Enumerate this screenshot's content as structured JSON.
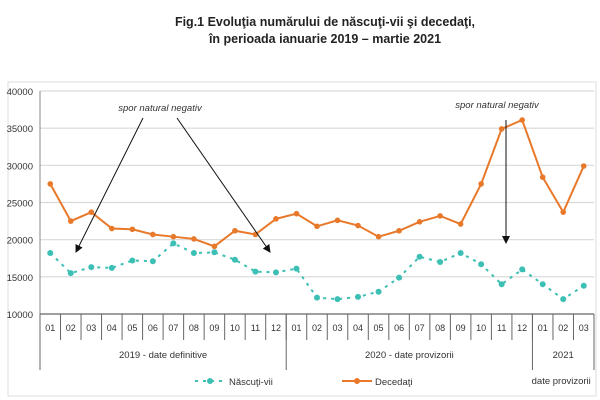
{
  "chart_data": {
    "type": "line",
    "title": "Fig.1 Evoluţia numărului de născuţi-vii şi decedaţi,",
    "subtitle": "în perioada ianuarie 2019 –  martie 2021",
    "categories": [
      "01",
      "02",
      "03",
      "04",
      "05",
      "06",
      "07",
      "08",
      "09",
      "10",
      "11",
      "12",
      "01",
      "02",
      "03",
      "04",
      "05",
      "06",
      "07",
      "08",
      "09",
      "10",
      "11",
      "12",
      "01",
      "02",
      "03"
    ],
    "groups": [
      {
        "label": "2019 - date definitive",
        "count": 12
      },
      {
        "label": "2020 - date provizorii",
        "count": 12
      },
      {
        "label": "2021",
        "sublabel": "date provizorii",
        "count": 3
      }
    ],
    "ylim": [
      10000,
      40000
    ],
    "yticks": [
      10000,
      15000,
      20000,
      25000,
      30000,
      35000,
      40000
    ],
    "grid": true,
    "legend_position": "bottom",
    "series": [
      {
        "name": "Născuţi-vii",
        "color": "#3cbfb4",
        "style": "dashed",
        "values": [
          18200,
          15500,
          16300,
          16200,
          17200,
          17100,
          19500,
          18200,
          18300,
          17300,
          15700,
          15600,
          16100,
          12200,
          12000,
          12300,
          13000,
          14900,
          17700,
          17000,
          18200,
          16700,
          14000,
          16000,
          14000,
          12000,
          13800
        ]
      },
      {
        "name": "Decedaţi",
        "color": "#e8792b",
        "style": "solid",
        "values": [
          27500,
          22500,
          23700,
          21500,
          21400,
          20700,
          20400,
          20100,
          19100,
          21200,
          20700,
          22800,
          23500,
          21800,
          22600,
          21900,
          20400,
          21200,
          22400,
          23200,
          22100,
          27500,
          34900,
          36100,
          28400,
          23700,
          29900
        ]
      }
    ],
    "annotations": [
      {
        "text": "spor natural negativ",
        "points_to": [
          "02 2019",
          "12 2019"
        ]
      },
      {
        "text": "spor natural negativ",
        "points_to": [
          "11 2020"
        ]
      }
    ]
  }
}
